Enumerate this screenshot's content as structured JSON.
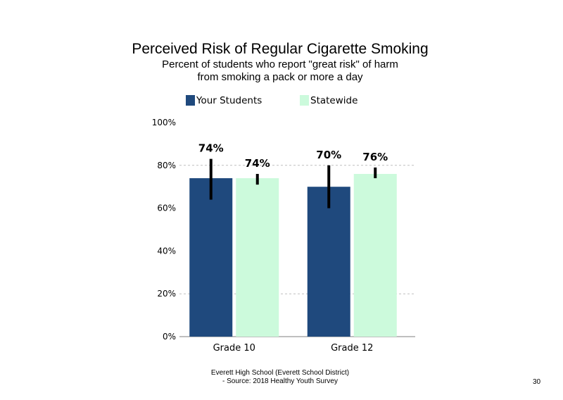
{
  "header": {
    "title": "Perceived Risk of Regular Cigarette Smoking",
    "subtitle_line1": "Percent of students who report \"great risk\" of harm",
    "subtitle_line2": "from smoking a pack or more a day"
  },
  "footer": {
    "line1": "Everett High School (Everett School District)",
    "line2": "- Source: 2018 Healthy Youth Survey",
    "page_number": "30"
  },
  "colors": {
    "your_students": "#1f497d",
    "statewide": "#ccfadc",
    "error_bar": "#000000",
    "gridline": "#bfbfbf",
    "axis": "#7f7f7f"
  },
  "chart_data": {
    "type": "bar",
    "categories": [
      "Grade 10",
      "Grade 12"
    ],
    "series": [
      {
        "name": "Your Students",
        "values": [
          74,
          70
        ],
        "labels": [
          "74%",
          "70%"
        ],
        "error_low": [
          64,
          60
        ],
        "error_high": [
          83,
          80
        ]
      },
      {
        "name": "Statewide",
        "values": [
          74,
          76
        ],
        "labels": [
          "74%",
          "76%"
        ],
        "error_low": [
          71,
          74
        ],
        "error_high": [
          76,
          79
        ]
      }
    ],
    "ylim": [
      0,
      100
    ],
    "yticks": [
      0,
      20,
      40,
      60,
      80,
      100
    ],
    "ytick_labels": [
      "0%",
      "20%",
      "40%",
      "60%",
      "80%",
      "100%"
    ],
    "gridlines": [
      20,
      80
    ],
    "legend_position": "top",
    "xlabel": "",
    "ylabel": ""
  }
}
